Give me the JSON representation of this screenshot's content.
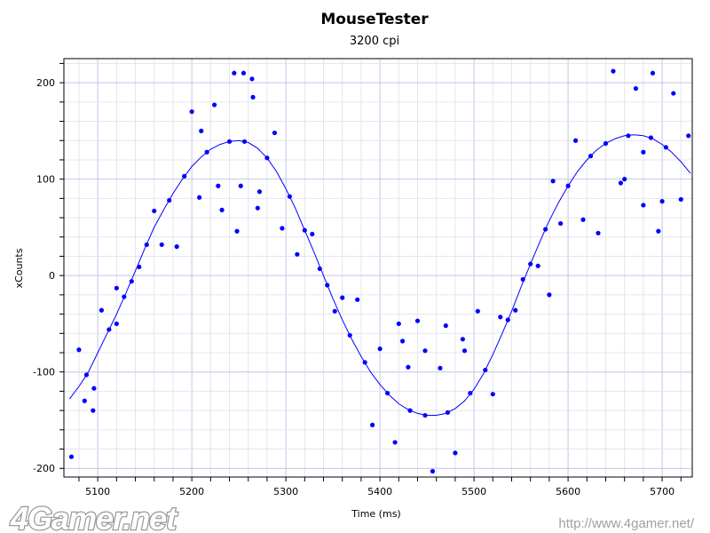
{
  "chart_data": {
    "type": "scatter",
    "title": "MouseTester",
    "subtitle": "3200 cpi",
    "xlabel": "Time (ms)",
    "ylabel": "xCounts",
    "xlim": [
      5064,
      5732
    ],
    "ylim": [
      -209,
      225
    ],
    "xticks": [
      5100,
      5200,
      5300,
      5400,
      5500,
      5600,
      5700
    ],
    "yticks": [
      -200,
      -100,
      0,
      100,
      200
    ],
    "grid": true,
    "color": "#0000ff",
    "series": [
      {
        "name": "xCounts (line)",
        "type": "line",
        "x": [
          5070,
          5080,
          5090,
          5100,
          5110,
          5120,
          5130,
          5140,
          5150,
          5160,
          5170,
          5180,
          5190,
          5200,
          5210,
          5220,
          5230,
          5240,
          5250,
          5260,
          5270,
          5280,
          5290,
          5300,
          5310,
          5320,
          5330,
          5340,
          5350,
          5360,
          5370,
          5380,
          5390,
          5400,
          5410,
          5420,
          5430,
          5440,
          5450,
          5460,
          5470,
          5480,
          5490,
          5500,
          5510,
          5520,
          5530,
          5540,
          5550,
          5560,
          5570,
          5580,
          5590,
          5600,
          5610,
          5620,
          5630,
          5640,
          5650,
          5660,
          5670,
          5680,
          5690,
          5700,
          5710,
          5720,
          5730
        ],
        "y": [
          -128,
          -115,
          -100,
          -80,
          -60,
          -40,
          -18,
          5,
          28,
          50,
          68,
          85,
          100,
          113,
          123,
          131,
          136,
          139,
          140,
          138,
          132,
          122,
          108,
          90,
          70,
          47,
          24,
          0,
          -24,
          -46,
          -66,
          -84,
          -100,
          -113,
          -124,
          -133,
          -139,
          -143,
          -145,
          -145,
          -143,
          -138,
          -130,
          -118,
          -102,
          -82,
          -60,
          -37,
          -12,
          12,
          35,
          57,
          76,
          93,
          108,
          120,
          130,
          137,
          142,
          145,
          146,
          145,
          142,
          136,
          128,
          118,
          106
        ]
      },
      {
        "name": "xCounts (points)",
        "type": "scatter",
        "points": [
          [
            5072,
            -188
          ],
          [
            5080,
            -77
          ],
          [
            5088,
            -103
          ],
          [
            5096,
            -117
          ],
          [
            5104,
            -36
          ],
          [
            5112,
            -56
          ],
          [
            5120,
            -13
          ],
          [
            5128,
            -22
          ],
          [
            5136,
            -6
          ],
          [
            5144,
            9
          ],
          [
            5152,
            32
          ],
          [
            5160,
            67
          ],
          [
            5168,
            32
          ],
          [
            5176,
            78
          ],
          [
            5184,
            30
          ],
          [
            5192,
            103
          ],
          [
            5200,
            170
          ],
          [
            5208,
            81
          ],
          [
            5216,
            128
          ],
          [
            5224,
            177
          ],
          [
            5232,
            68
          ],
          [
            5240,
            139
          ],
          [
            5248,
            46
          ],
          [
            5256,
            139
          ],
          [
            5264,
            204
          ],
          [
            5272,
            87
          ],
          [
            5280,
            122
          ],
          [
            5288,
            148
          ],
          [
            5296,
            49
          ],
          [
            5304,
            82
          ],
          [
            5312,
            22
          ],
          [
            5320,
            47
          ],
          [
            5328,
            43
          ],
          [
            5336,
            7
          ],
          [
            5344,
            -10
          ],
          [
            5352,
            -37
          ],
          [
            5360,
            -23
          ],
          [
            5368,
            -62
          ],
          [
            5376,
            -25
          ],
          [
            5384,
            -90
          ],
          [
            5392,
            -155
          ],
          [
            5400,
            -76
          ],
          [
            5408,
            -122
          ],
          [
            5416,
            -173
          ],
          [
            5424,
            -68
          ],
          [
            5432,
            -140
          ],
          [
            5440,
            -47
          ],
          [
            5448,
            -145
          ],
          [
            5456,
            -203
          ],
          [
            5464,
            -96
          ],
          [
            5472,
            -142
          ],
          [
            5480,
            -184
          ],
          [
            5488,
            -66
          ],
          [
            5496,
            -122
          ],
          [
            5504,
            -37
          ],
          [
            5512,
            -98
          ],
          [
            5520,
            -123
          ],
          [
            5528,
            -43
          ],
          [
            5536,
            -46
          ],
          [
            5544,
            -36
          ],
          [
            5552,
            -4
          ],
          [
            5560,
            12
          ],
          [
            5568,
            10
          ],
          [
            5576,
            48
          ],
          [
            5584,
            98
          ],
          [
            5592,
            54
          ],
          [
            5600,
            93
          ],
          [
            5608,
            140
          ],
          [
            5616,
            58
          ],
          [
            5624,
            124
          ],
          [
            5632,
            44
          ],
          [
            5640,
            137
          ],
          [
            5648,
            212
          ],
          [
            5656,
            96
          ],
          [
            5664,
            145
          ],
          [
            5672,
            194
          ],
          [
            5680,
            73
          ],
          [
            5688,
            143
          ],
          [
            5696,
            46
          ],
          [
            5704,
            133
          ],
          [
            5712,
            189
          ],
          [
            5720,
            79
          ],
          [
            5728,
            145
          ],
          [
            5245,
            210
          ],
          [
            5255,
            210
          ],
          [
            5265,
            185
          ],
          [
            5252,
            93
          ],
          [
            5270,
            70
          ],
          [
            5228,
            93
          ],
          [
            5680,
            128
          ],
          [
            5660,
            100
          ],
          [
            5700,
            77
          ],
          [
            5448,
            -78
          ],
          [
            5430,
            -95
          ],
          [
            5490,
            -78
          ],
          [
            5420,
            -50
          ],
          [
            5470,
            -52
          ],
          [
            5690,
            210
          ],
          [
            5210,
            150
          ],
          [
            5580,
            -20
          ],
          [
            5120,
            -50
          ],
          [
            5086,
            -130
          ],
          [
            5095,
            -140
          ]
        ]
      }
    ]
  },
  "watermark": {
    "logo": "4Gamer.net",
    "url": "http://www.4gamer.net/"
  }
}
